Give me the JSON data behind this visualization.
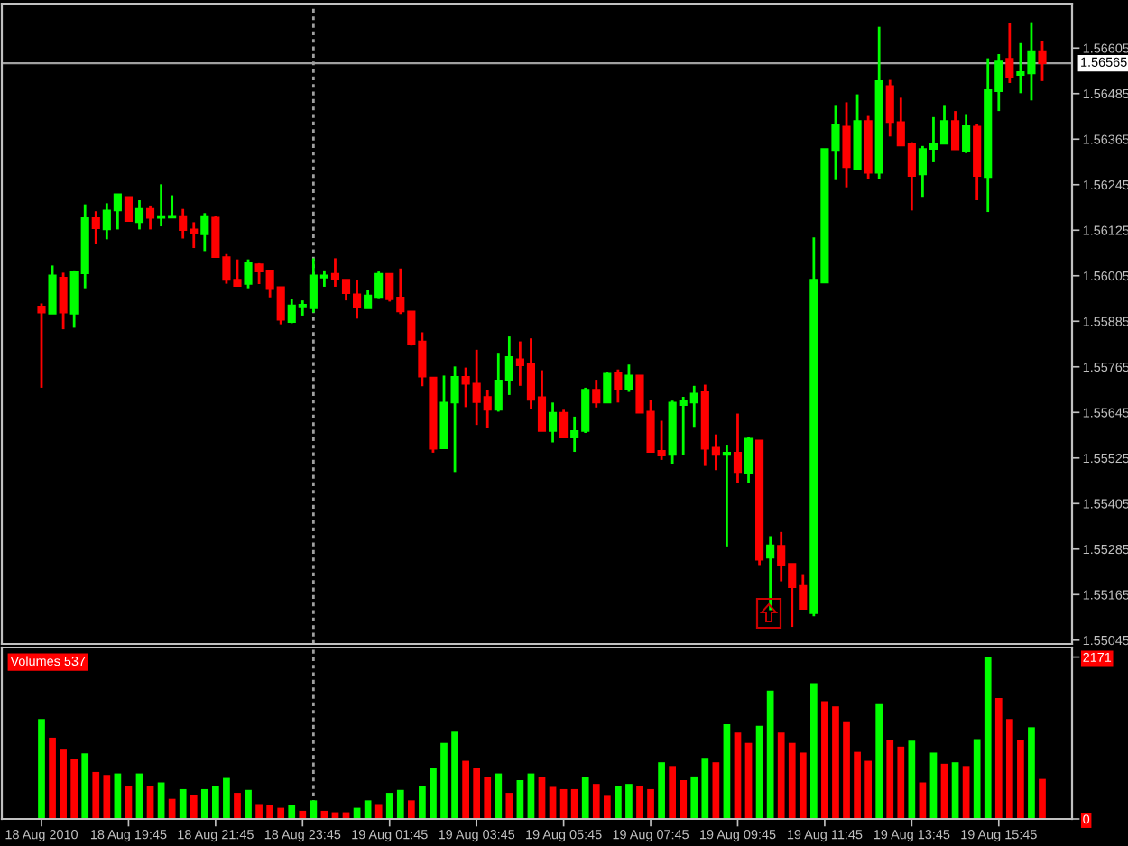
{
  "chart_data": [
    {
      "type": "candlestick",
      "categories": [
        null,
        null,
        null,
        null,
        null,
        null,
        null,
        null,
        null,
        null,
        null,
        null,
        null,
        null,
        null,
        null,
        null,
        null,
        null,
        null,
        null,
        null,
        null,
        null,
        null,
        null,
        null,
        null,
        null,
        null,
        null,
        null,
        null,
        null,
        null,
        null,
        null,
        null,
        null,
        null,
        null,
        null,
        null,
        null,
        null,
        null,
        null,
        null,
        null,
        null,
        null,
        null,
        null,
        null,
        null,
        null,
        null,
        null,
        null,
        null,
        null,
        null,
        null,
        null,
        null,
        null,
        null,
        null,
        null,
        null,
        null,
        null,
        null,
        null,
        null,
        null,
        null,
        null,
        null,
        null,
        null,
        null,
        null,
        null,
        null,
        null,
        null,
        null,
        null,
        null,
        null,
        null,
        null
      ],
      "ohlc": [
        [
          1.55924,
          1.55932,
          1.5571,
          1.55908
        ],
        [
          1.55905,
          1.56032,
          1.55905,
          1.56006
        ],
        [
          1.56,
          1.56013,
          1.55864,
          1.55908
        ],
        [
          1.55905,
          1.56019,
          1.55868,
          1.56016
        ],
        [
          1.56011,
          1.56193,
          1.55972,
          1.56157
        ],
        [
          1.56157,
          1.56175,
          1.5609,
          1.5613
        ],
        [
          1.56127,
          1.56196,
          1.56101,
          1.56177
        ],
        [
          1.56177,
          1.5622,
          1.56127,
          1.5622
        ],
        [
          1.56213,
          1.56213,
          1.56149,
          1.56149
        ],
        [
          1.56146,
          1.56204,
          1.56127,
          1.56181
        ],
        [
          1.56181,
          1.5619,
          1.56127,
          1.56157
        ],
        [
          1.56157,
          1.56246,
          1.56135,
          1.56162
        ],
        [
          1.56158,
          1.56217,
          1.56158,
          1.56163
        ],
        [
          1.56162,
          1.56181,
          1.56103,
          1.56125
        ],
        [
          1.56127,
          1.56146,
          1.56078,
          1.56117
        ],
        [
          1.56114,
          1.5617,
          1.5607,
          1.56162
        ],
        [
          1.56158,
          1.56162,
          1.56054,
          1.56054
        ],
        [
          1.56054,
          1.56062,
          1.55984,
          1.55994
        ],
        [
          1.55995,
          1.56048,
          1.55978,
          1.55978
        ],
        [
          1.55983,
          1.56048,
          1.55972,
          1.56038
        ],
        [
          1.56035,
          1.56038,
          1.55983,
          1.56016
        ],
        [
          1.56019,
          1.56019,
          1.55948,
          1.55972
        ],
        [
          1.55975,
          1.55975,
          1.55877,
          1.55889
        ],
        [
          1.55883,
          1.55943,
          1.5588,
          1.55927
        ],
        [
          1.55924,
          1.5594,
          1.559,
          1.55929
        ],
        [
          1.55919,
          1.56051,
          1.55908,
          1.56006
        ],
        [
          1.56,
          1.56019,
          1.55976,
          1.56006
        ],
        [
          1.5601,
          1.56051,
          1.55976,
          1.55995
        ],
        [
          1.55995,
          1.55995,
          1.5594,
          1.55959
        ],
        [
          1.55956,
          1.55994,
          1.55892,
          1.55921
        ],
        [
          1.55919,
          1.55968,
          1.55919,
          1.55953
        ],
        [
          1.55949,
          1.56016,
          1.55946,
          1.5601
        ],
        [
          1.5601,
          1.56011,
          1.55937,
          1.55943
        ],
        [
          1.55948,
          1.56024,
          1.55904,
          1.55911
        ],
        [
          1.55911,
          1.55911,
          1.55821,
          1.55826
        ],
        [
          1.55832,
          1.55856,
          1.55714,
          1.55739
        ],
        [
          1.55737,
          1.55737,
          1.55539,
          1.55549
        ],
        [
          1.5555,
          1.55742,
          1.5555,
          1.55671
        ],
        [
          1.55671,
          1.55766,
          1.55488,
          1.55739
        ],
        [
          1.55739,
          1.55763,
          1.55659,
          1.5572
        ],
        [
          1.55721,
          1.5581,
          1.55612,
          1.55672
        ],
        [
          1.55686,
          1.55705,
          1.55604,
          1.55652
        ],
        [
          1.55652,
          1.55802,
          1.55647,
          1.55729
        ],
        [
          1.55731,
          1.55845,
          1.55691,
          1.55791
        ],
        [
          1.55785,
          1.55832,
          1.55715,
          1.55769
        ],
        [
          1.55773,
          1.5584,
          1.55655,
          1.55678
        ],
        [
          1.55685,
          1.55756,
          1.55596,
          1.55596
        ],
        [
          1.55596,
          1.55671,
          1.55566,
          1.55644
        ],
        [
          1.55644,
          1.55652,
          1.55579,
          1.55579
        ],
        [
          1.55579,
          1.55634,
          1.55541,
          1.55596
        ],
        [
          1.55596,
          1.5571,
          1.55591,
          1.55705
        ],
        [
          1.55705,
          1.55731,
          1.55658,
          1.55671
        ],
        [
          1.55671,
          1.5575,
          1.55671,
          1.55747
        ],
        [
          1.55748,
          1.55758,
          1.55671,
          1.55707
        ],
        [
          1.55707,
          1.55771,
          1.55699,
          1.55742
        ],
        [
          1.55742,
          1.55742,
          1.55644,
          1.55644
        ],
        [
          1.55647,
          1.55678,
          1.55541,
          1.55541
        ],
        [
          1.55544,
          1.55623,
          1.5552,
          1.55531
        ],
        [
          1.55533,
          1.55676,
          1.55509,
          1.55671
        ],
        [
          1.55664,
          1.55686,
          1.55533,
          1.55677
        ],
        [
          1.55671,
          1.55715,
          1.55607,
          1.55695
        ],
        [
          1.55699,
          1.55718,
          1.55504,
          1.55549
        ],
        [
          1.55552,
          1.55587,
          1.55493,
          1.55533
        ],
        [
          1.55533,
          1.5556,
          1.55292,
          1.55539
        ],
        [
          1.55539,
          1.55642,
          1.5546,
          1.55488
        ],
        [
          1.55484,
          1.5558,
          1.5546,
          1.55576
        ],
        [
          1.55571,
          1.55571,
          1.55243,
          1.55257
        ],
        [
          1.55262,
          1.55319,
          1.55124,
          1.55295
        ],
        [
          1.55294,
          1.5533,
          1.552,
          1.55243
        ],
        [
          1.55246,
          1.55246,
          1.5508,
          1.55184
        ],
        [
          1.55188,
          1.55219,
          1.55127,
          1.55127
        ],
        [
          1.55116,
          1.56106,
          1.55108,
          1.55995
        ],
        [
          1.55987,
          1.56339,
          1.55987,
          1.56339
        ],
        [
          1.56336,
          1.56455,
          1.56257,
          1.56404
        ],
        [
          1.56398,
          1.56462,
          1.56238,
          1.56291
        ],
        [
          1.56285,
          1.56483,
          1.56285,
          1.56413
        ],
        [
          1.56413,
          1.56426,
          1.5626,
          1.56276
        ],
        [
          1.56276,
          1.56661,
          1.56261,
          1.56518
        ],
        [
          1.56505,
          1.56521,
          1.56372,
          1.5641
        ],
        [
          1.5641,
          1.56474,
          1.56348,
          1.56348
        ],
        [
          1.56353,
          1.56357,
          1.56177,
          1.56268
        ],
        [
          1.56272,
          1.56347,
          1.56213,
          1.56339
        ],
        [
          1.56339,
          1.56423,
          1.56304,
          1.56353
        ],
        [
          1.56353,
          1.56455,
          1.56353,
          1.56413
        ],
        [
          1.56413,
          1.56439,
          1.56338,
          1.56338
        ],
        [
          1.56333,
          1.56431,
          1.56328,
          1.56399
        ],
        [
          1.56398,
          1.56404,
          1.56204,
          1.56268
        ],
        [
          1.56265,
          1.56578,
          1.56173,
          1.56494
        ],
        [
          1.56491,
          1.56589,
          1.56439,
          1.5657
        ],
        [
          1.56577,
          1.56672,
          1.56513,
          1.56529
        ],
        [
          1.56534,
          1.56618,
          1.56486,
          1.56542
        ],
        [
          1.56538,
          1.56673,
          1.56467,
          1.56597
        ],
        [
          1.56597,
          1.56624,
          1.56518,
          1.56565
        ]
      ],
      "colors": [
        "#ff0000",
        "#00ff00",
        "#ff0000",
        "#00ff00",
        "#00ff00",
        "#ff0000",
        "#00ff00",
        "#00ff00",
        "#ff0000",
        "#00ff00",
        "#ff0000",
        "#00ff00",
        "#00ff00",
        "#ff0000",
        "#ff0000",
        "#00ff00",
        "#ff0000",
        "#ff0000",
        "#ff0000",
        "#00ff00",
        "#ff0000",
        "#ff0000",
        "#ff0000",
        "#00ff00",
        "#00ff00",
        "#00ff00",
        "#00ff00",
        "#ff0000",
        "#ff0000",
        "#ff0000",
        "#00ff00",
        "#00ff00",
        "#ff0000",
        "#ff0000",
        "#ff0000",
        "#ff0000",
        "#ff0000",
        "#00ff00",
        "#00ff00",
        "#ff0000",
        "#ff0000",
        "#ff0000",
        "#00ff00",
        "#00ff00",
        "#ff0000",
        "#ff0000",
        "#ff0000",
        "#00ff00",
        "#ff0000",
        "#00ff00",
        "#00ff00",
        "#ff0000",
        "#00ff00",
        "#ff0000",
        "#00ff00",
        "#ff0000",
        "#ff0000",
        "#ff0000",
        "#00ff00",
        "#00ff00",
        "#00ff00",
        "#ff0000",
        "#ff0000",
        "#00ff00",
        "#ff0000",
        "#00ff00",
        "#ff0000",
        "#00ff00",
        "#ff0000",
        "#ff0000",
        "#ff0000",
        "#00ff00",
        "#00ff00",
        "#00ff00",
        "#ff0000",
        "#00ff00",
        "#ff0000",
        "#00ff00",
        "#ff0000",
        "#ff0000",
        "#ff0000",
        "#00ff00",
        "#00ff00",
        "#00ff00",
        "#ff0000",
        "#00ff00",
        "#ff0000",
        "#00ff00",
        "#00ff00",
        "#ff0000",
        "#00ff00",
        "#00ff00",
        "#ff0000"
      ],
      "ylim": [
        1.55035,
        1.56722
      ],
      "yticks": [
        1.56605,
        1.56485,
        1.56365,
        1.56245,
        1.56125,
        1.56005,
        1.55885,
        1.55765,
        1.55645,
        1.55525,
        1.55405,
        1.55285,
        1.55165,
        1.55045
      ],
      "ref_lines": [
        {
          "axis": "y",
          "value": 1.56565,
          "label": "1.56565",
          "color": "#a0a0a0",
          "line_style": "solid"
        }
      ],
      "tick_labels": "y"
    },
    {
      "type": "bar",
      "title": "Volumes 537",
      "categories": [
        "18 Aug 2010",
        null,
        null,
        null,
        null,
        null,
        null,
        null,
        "18 Aug 19:45",
        null,
        null,
        null,
        null,
        null,
        null,
        null,
        "18 Aug 21:45",
        null,
        null,
        null,
        null,
        null,
        null,
        null,
        "18 Aug 23:45",
        null,
        null,
        null,
        null,
        null,
        null,
        null,
        "19 Aug 01:45",
        null,
        null,
        null,
        null,
        null,
        null,
        null,
        "19 Aug 03:45",
        null,
        null,
        null,
        null,
        null,
        null,
        null,
        "19 Aug 05:45",
        null,
        null,
        null,
        null,
        null,
        null,
        null,
        "19 Aug 07:45",
        null,
        null,
        null,
        null,
        null,
        null,
        null,
        "19 Aug 09:45",
        null,
        null,
        null,
        null,
        null,
        null,
        null,
        "19 Aug 11:45",
        null,
        null,
        null,
        null,
        null,
        null,
        null,
        "19 Aug 13:45",
        null,
        null,
        null,
        null,
        null,
        null,
        null,
        "19 Aug 15:45",
        null,
        null,
        null,
        null
      ],
      "values": [
        1340,
        1090,
        930,
        800,
        880,
        630,
        590,
        610,
        440,
        610,
        440,
        490,
        270,
        400,
        320,
        400,
        440,
        550,
        350,
        390,
        200,
        190,
        150,
        190,
        110,
        250,
        110,
        90,
        90,
        150,
        250,
        200,
        350,
        390,
        250,
        440,
        680,
        1020,
        1170,
        780,
        680,
        560,
        610,
        350,
        520,
        610,
        560,
        430,
        400,
        400,
        560,
        470,
        310,
        440,
        470,
        440,
        400,
        760,
        710,
        520,
        570,
        820,
        760,
        1270,
        1160,
        1020,
        1250,
        1720,
        1160,
        1020,
        890,
        1820,
        1580,
        1510,
        1310,
        900,
        780,
        1540,
        1060,
        970,
        1050,
        490,
        890,
        740,
        760,
        710,
        1070,
        2171,
        1620,
        1340,
        1060,
        1230,
        537
      ],
      "colors": [
        "#00ff00",
        "#ff0000",
        "#ff0000",
        "#ff0000",
        "#00ff00",
        "#ff0000",
        "#ff0000",
        "#00ff00",
        "#ff0000",
        "#00ff00",
        "#ff0000",
        "#00ff00",
        "#ff0000",
        "#00ff00",
        "#ff0000",
        "#00ff00",
        "#00ff00",
        "#00ff00",
        "#ff0000",
        "#00ff00",
        "#ff0000",
        "#ff0000",
        "#ff0000",
        "#00ff00",
        "#ff0000",
        "#00ff00",
        "#ff0000",
        "#ff0000",
        "#ff0000",
        "#00ff00",
        "#00ff00",
        "#ff0000",
        "#00ff00",
        "#00ff00",
        "#ff0000",
        "#00ff00",
        "#00ff00",
        "#00ff00",
        "#00ff00",
        "#ff0000",
        "#ff0000",
        "#ff0000",
        "#00ff00",
        "#ff0000",
        "#00ff00",
        "#00ff00",
        "#ff0000",
        "#ff0000",
        "#ff0000",
        "#ff0000",
        "#00ff00",
        "#ff0000",
        "#ff0000",
        "#00ff00",
        "#00ff00",
        "#ff0000",
        "#ff0000",
        "#00ff00",
        "#ff0000",
        "#ff0000",
        "#00ff00",
        "#00ff00",
        "#ff0000",
        "#00ff00",
        "#ff0000",
        "#ff0000",
        "#00ff00",
        "#00ff00",
        "#ff0000",
        "#ff0000",
        "#ff0000",
        "#00ff00",
        "#ff0000",
        "#ff0000",
        "#ff0000",
        "#ff0000",
        "#ff0000",
        "#00ff00",
        "#ff0000",
        "#ff0000",
        "#00ff00",
        "#ff0000",
        "#00ff00",
        "#ff0000",
        "#00ff00",
        "#ff0000",
        "#00ff00",
        "#00ff00",
        "#ff0000",
        "#ff0000",
        "#ff0000",
        "#00ff00",
        "#ff0000"
      ],
      "ylim": [
        0,
        2299
      ],
      "yticks": [
        0,
        2171
      ]
    }
  ]
}
